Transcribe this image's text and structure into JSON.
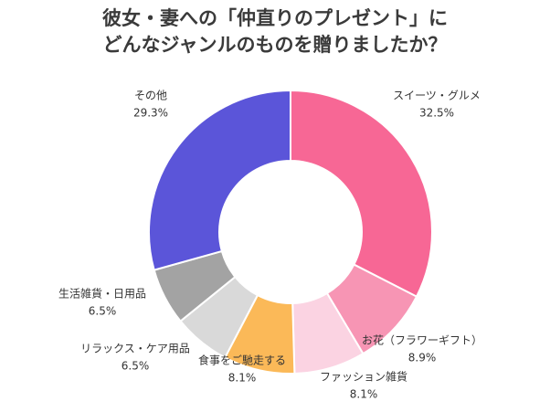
{
  "chart_data": {
    "type": "donut",
    "title": [
      "彼女・妻への「仲直りのプレゼント」に",
      "どんなジャンルのものを贈りましたか？"
    ],
    "categories": [
      "スイーツ・グルメ",
      "お花（フラワーギフト）",
      "ファッション雑貨",
      "食事をご馳走する",
      "リラックス・ケア用品",
      "生活雑貨・日用品",
      "その他"
    ],
    "values": [
      32.5,
      8.9,
      8.1,
      8.1,
      6.5,
      6.5,
      29.3
    ],
    "value_labels": [
      "32.5%",
      "8.9%",
      "8.1%",
      "8.1%",
      "6.5%",
      "6.5%",
      "29.3%"
    ],
    "colors": [
      "#f76795",
      "#f795b4",
      "#fbd3e2",
      "#fbb958",
      "#d9d9d9",
      "#a3a3a3",
      "#5b55d9"
    ]
  }
}
